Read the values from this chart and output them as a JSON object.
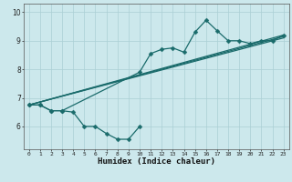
{
  "xlabel": "Humidex (Indice chaleur)",
  "xlim": [
    -0.5,
    23.5
  ],
  "ylim": [
    5.2,
    10.3
  ],
  "yticks": [
    6,
    7,
    8,
    9,
    10
  ],
  "xticks": [
    0,
    1,
    2,
    3,
    4,
    5,
    6,
    7,
    8,
    9,
    10,
    11,
    12,
    13,
    14,
    15,
    16,
    17,
    18,
    19,
    20,
    21,
    22,
    23
  ],
  "bg_color": "#cce8ec",
  "grid_color": "#aacfd4",
  "line_color": "#1a6b6b",
  "s1x": [
    0,
    1,
    2,
    3,
    4,
    5,
    6,
    7,
    8,
    9,
    10
  ],
  "s1y": [
    6.75,
    6.75,
    6.55,
    6.55,
    6.5,
    6.0,
    6.0,
    5.75,
    5.55,
    5.55,
    6.0
  ],
  "s2x": [
    0,
    1,
    2,
    3,
    10,
    11,
    12,
    13,
    14,
    15,
    16,
    17,
    18,
    19,
    20,
    21,
    22,
    23
  ],
  "s2y": [
    6.75,
    6.75,
    6.55,
    6.55,
    7.9,
    8.55,
    8.7,
    8.75,
    8.6,
    9.3,
    9.72,
    9.35,
    9.0,
    9.0,
    8.9,
    9.0,
    9.0,
    9.2
  ],
  "trend1x": [
    0,
    23
  ],
  "trend1y": [
    6.75,
    9.15
  ],
  "trend2x": [
    0,
    23
  ],
  "trend2y": [
    6.75,
    9.1
  ],
  "trend3x": [
    0,
    23
  ],
  "trend3y": [
    6.75,
    9.2
  ]
}
